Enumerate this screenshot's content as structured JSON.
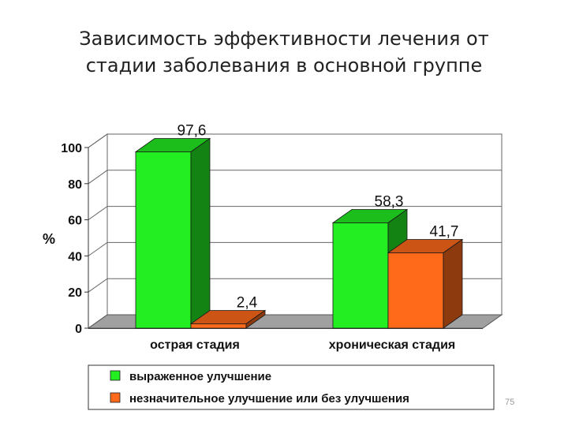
{
  "slide": {
    "title_line1": "Зависимость эффективности лечения от",
    "title_line2": "стадии заболевания в основной группе",
    "page_number": "75"
  },
  "chart_data": {
    "type": "bar",
    "categories": [
      "острая стадия",
      "хроническая стадия"
    ],
    "series": [
      {
        "name": "выраженное улучшение",
        "values": [
          97.6,
          58.3
        ],
        "labels": [
          "97,6",
          "58,3"
        ],
        "color": "#22ee22"
      },
      {
        "name": "незначительное улучшение или без улучшения",
        "values": [
          2.4,
          41.7
        ],
        "labels": [
          "2,4",
          "41,7"
        ],
        "color": "#ff6a1a"
      }
    ],
    "ylabel": "%",
    "ylim": [
      0,
      100
    ],
    "yticks": [
      0,
      20,
      40,
      60,
      80,
      100
    ],
    "grid": true,
    "legend": "bottom",
    "style": "3d"
  }
}
